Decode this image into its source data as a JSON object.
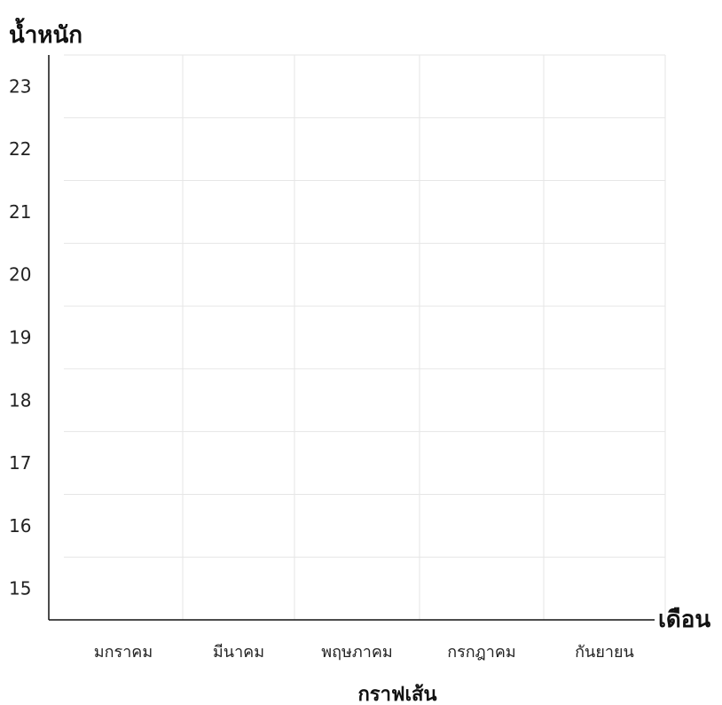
{
  "chart_data": {
    "type": "line",
    "title": "",
    "caption": "กราฟเส้น",
    "ylabel": "น้ำหนัก",
    "xlabel": "เดือน",
    "categories": [
      "มกราคม",
      "มีนาคม",
      "พฤษภาคม",
      "กรกฎาคม",
      "กันยายน"
    ],
    "y_ticks": [
      15,
      16,
      17,
      18,
      19,
      20,
      21,
      22,
      23
    ],
    "ylim": [
      14.5,
      23.5
    ],
    "grid": true,
    "series": []
  },
  "colors": {
    "grid": "#e6e6e6",
    "axis": "#111111"
  }
}
